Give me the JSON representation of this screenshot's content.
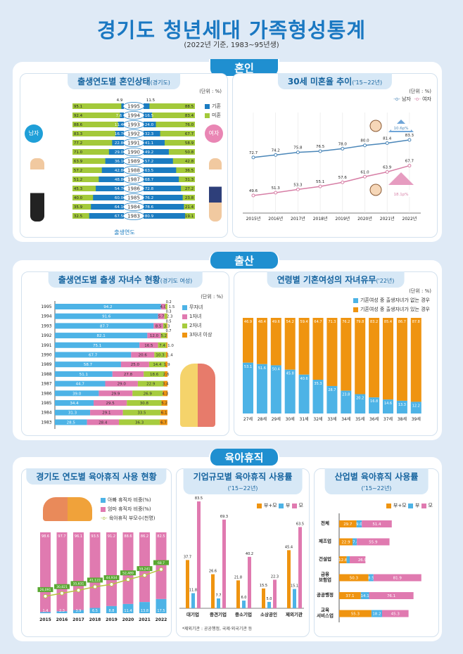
{
  "title": "경기도 청년세대 가족형성통계",
  "subtitle": "(2022년 기준, 1983~95년생)",
  "colors": {
    "blue": "#1b7cc1",
    "green": "#a3c93a",
    "sky": "#4db3e6",
    "pink": "#e07ab0",
    "lime": "#a6cc3e",
    "orange": "#ef9410",
    "men": "#4a86b8",
    "women": "#d77fa6",
    "brand": "#1f8fd0"
  },
  "sections": {
    "marriage": "혼인",
    "birth": "출산",
    "leave": "육아휴직"
  },
  "chart_data": [
    {
      "type": "bar",
      "id": "marital-status",
      "title": "출생연도별 혼인상태",
      "title_note": "(경기도)",
      "unit": "(단위 : %)",
      "xlabel": "출생연도",
      "left_label": "남자",
      "right_label": "여자",
      "legend": [
        "기혼",
        "미혼"
      ],
      "categories": [
        "1995",
        "1994",
        "1993",
        "1992",
        "1991",
        "1990",
        "1989",
        "1988",
        "1987",
        "1986",
        "1985",
        "1984",
        "1983"
      ],
      "male_married": [
        4.9,
        7.6,
        11.4,
        16.7,
        22.8,
        29.0,
        36.1,
        42.8,
        48.8,
        54.7,
        60.0,
        64.1,
        67.5
      ],
      "male_unmarried": [
        95.1,
        92.4,
        88.6,
        83.3,
        77.2,
        71.0,
        63.9,
        57.2,
        51.2,
        45.3,
        40.0,
        35.9,
        32.5
      ],
      "female_married": [
        11.5,
        16.5,
        24.0,
        32.3,
        41.1,
        49.2,
        57.2,
        63.5,
        68.7,
        72.8,
        76.2,
        78.6,
        80.9
      ],
      "female_unmarried": [
        88.5,
        83.4,
        76.0,
        67.7,
        58.9,
        50.8,
        42.8,
        36.5,
        31.3,
        27.2,
        23.8,
        21.4,
        19.1
      ]
    },
    {
      "type": "line",
      "id": "unmarried-30",
      "title": "30세 미혼율 추이",
      "title_note": "('15~22년)",
      "unit": "(단위 : %)",
      "x": [
        "2015년",
        "2016년",
        "2017년",
        "2018년",
        "2019년",
        "2020년",
        "2021년",
        "2022년"
      ],
      "series": [
        {
          "name": "남자",
          "values": [
            72.7,
            74.2,
            75.8,
            76.5,
            78.0,
            80.0,
            81.4,
            83.3
          ],
          "change": "10.6p%"
        },
        {
          "name": "여자",
          "values": [
            49.6,
            51.3,
            53.3,
            55.1,
            57.6,
            61.0,
            63.9,
            67.7
          ],
          "change": "18.1p%"
        }
      ]
    },
    {
      "type": "bar",
      "id": "children-count",
      "title": "출생연도별 출생 자녀수 현황",
      "title_note": "(경기도 여성)",
      "unit": "(단위 : %)",
      "stacked": true,
      "orientation": "horizontal",
      "categories": [
        "1995",
        "1994",
        "1993",
        "1992",
        "1991",
        "1990",
        "1989",
        "1988",
        "1987",
        "1986",
        "1985",
        "1984",
        "1983"
      ],
      "series": [
        {
          "name": "무자녀",
          "values": [
            94.2,
            91.6,
            87.7,
            82.1,
            75.1,
            67.7,
            58.7,
            51.1,
            44.7,
            39.0,
            34.4,
            31.3,
            28.5
          ]
        },
        {
          "name": "1자녀",
          "values": [
            4.0,
            5.7,
            8.5,
            12.0,
            16.5,
            20.6,
            25.0,
            27.8,
            29.0,
            29.9,
            29.5,
            29.1,
            28.4
          ]
        },
        {
          "name": "2자녀",
          "values": [
            1.5,
            2.3,
            3.3,
            5.2,
            7.4,
            10.3,
            14.4,
            18.6,
            22.9,
            26.9,
            30.8,
            33.5,
            36.3
          ]
        },
        {
          "name": "3자녀 이상",
          "values": [
            0.2,
            0.3,
            0.5,
            0.7,
            1.0,
            1.4,
            1.9,
            2.6,
            3.4,
            4.3,
            5.2,
            6.1,
            6.7
          ]
        }
      ]
    },
    {
      "type": "bar",
      "id": "children-by-age",
      "title": "연령별 기혼여성의 자녀유무",
      "title_note": "('22년)",
      "unit": "(단위 : %)",
      "stacked": true,
      "categories": [
        "27세",
        "28세",
        "29세",
        "30세",
        "31세",
        "32세",
        "33세",
        "34세",
        "35세",
        "36세",
        "37세",
        "38세",
        "39세"
      ],
      "series": [
        {
          "name": "기혼여성 중 출생자녀가 없는 경우",
          "values": [
            53.1,
            51.6,
            50.4,
            45.8,
            40.6,
            35.3,
            28.7,
            23.8,
            20.2,
            16.8,
            14.6,
            13.3,
            12.2
          ]
        },
        {
          "name": "기혼여성 중 출생자녀가 있는 경우",
          "values": [
            46.9,
            48.4,
            49.6,
            54.2,
            59.4,
            64.7,
            71.3,
            76.2,
            79.8,
            83.2,
            85.4,
            86.7,
            87.8
          ]
        }
      ]
    },
    {
      "type": "bar",
      "id": "leave-yearly",
      "title": "경기도 연도별 육아휴직 사용 현황",
      "stacked": true,
      "categories": [
        "2015",
        "2016",
        "2017",
        "2018",
        "2019",
        "2020",
        "2021",
        "2022"
      ],
      "series": [
        {
          "name": "아빠 휴직자 비중(%)",
          "values": [
            1.4,
            2.3,
            3.9,
            6.5,
            8.8,
            11.4,
            13.8,
            17.5
          ]
        },
        {
          "name": "엄마 휴직자 비중(%)",
          "values": [
            98.6,
            97.7,
            96.1,
            93.5,
            91.2,
            88.6,
            86.2,
            82.5
          ]
        },
        {
          "name": "육아휴직 부모수(천명)",
          "type": "line",
          "labels": [
            "26,091",
            "30,821",
            "35,631",
            "41,122",
            "44,934",
            "52,489",
            "59,241",
            "68.7"
          ]
        }
      ]
    },
    {
      "type": "bar",
      "id": "leave-by-size",
      "title": "기업규모별 육아휴직 사용률",
      "title_note": "('15~22년)",
      "categories": [
        "대기업",
        "중견기업",
        "중소기업",
        "소상공인",
        "제외기관"
      ],
      "series": [
        {
          "name": "부+모",
          "values": [
            37.7,
            26.6,
            21.8,
            15.5,
            45.4
          ]
        },
        {
          "name": "부",
          "values": [
            11.8,
            7.7,
            6.0,
            5.0,
            15.1
          ]
        },
        {
          "name": "모",
          "values": [
            83.5,
            69.3,
            40.2,
            22.3,
            63.5
          ]
        }
      ],
      "footnote": "*제외기관 : 공공행정, 국제·외국기관 등"
    },
    {
      "type": "bar",
      "id": "leave-by-industry",
      "title": "산업별 육아휴직 사용률",
      "title_note": "('15~22년)",
      "stacked": true,
      "orientation": "horizontal",
      "categories": [
        "전체",
        "제조업",
        "건설업",
        "금융\n보험업",
        "공공행정",
        "교육\n서비스업"
      ],
      "series": [
        {
          "name": "부+모",
          "values": [
            29.7,
            22.9,
            12.8,
            50.3,
            37.1,
            55.3
          ]
        },
        {
          "name": "부",
          "values": [
            9.0,
            7.4,
            5.3,
            8.5,
            14.1,
            18.2
          ]
        },
        {
          "name": "모",
          "values": [
            51.4,
            55.9,
            26.9,
            81.9,
            76.1,
            45.3
          ]
        }
      ]
    }
  ]
}
